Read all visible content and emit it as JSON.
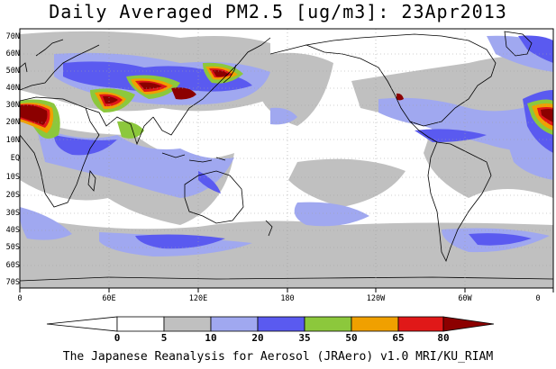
{
  "title": "Daily Averaged PM2.5 [ug/m3]: 23Apr2013",
  "footer": "The Japanese Reanalysis for Aerosol (JRAero) v1.0 MRI/KU_RIAM",
  "lat_labels": [
    "70N",
    "60N",
    "50N",
    "40N",
    "30N",
    "20N",
    "10N",
    "EQ",
    "10S",
    "20S",
    "30S",
    "40S",
    "50S",
    "60S",
    "70S"
  ],
  "lon_labels": [
    "0",
    "60E",
    "120E",
    "180",
    "120W",
    "60W",
    "0"
  ],
  "colorbar": {
    "labels": [
      "0",
      "5",
      "10",
      "20",
      "35",
      "50",
      "65",
      "80"
    ],
    "colors": [
      "#ffffff",
      "#ffffff",
      "#c0c0c0",
      "#a0a8f0",
      "#5a5af0",
      "#8cc83c",
      "#f0a000",
      "#e01818",
      "#8c0000"
    ]
  },
  "colors": {
    "low": "#c0c0c0",
    "light_blue": "#a0a8f0",
    "blue": "#5a5af0",
    "green": "#8cc83c",
    "orange": "#f0a000",
    "red": "#e01818",
    "dark_red": "#8c0000"
  }
}
